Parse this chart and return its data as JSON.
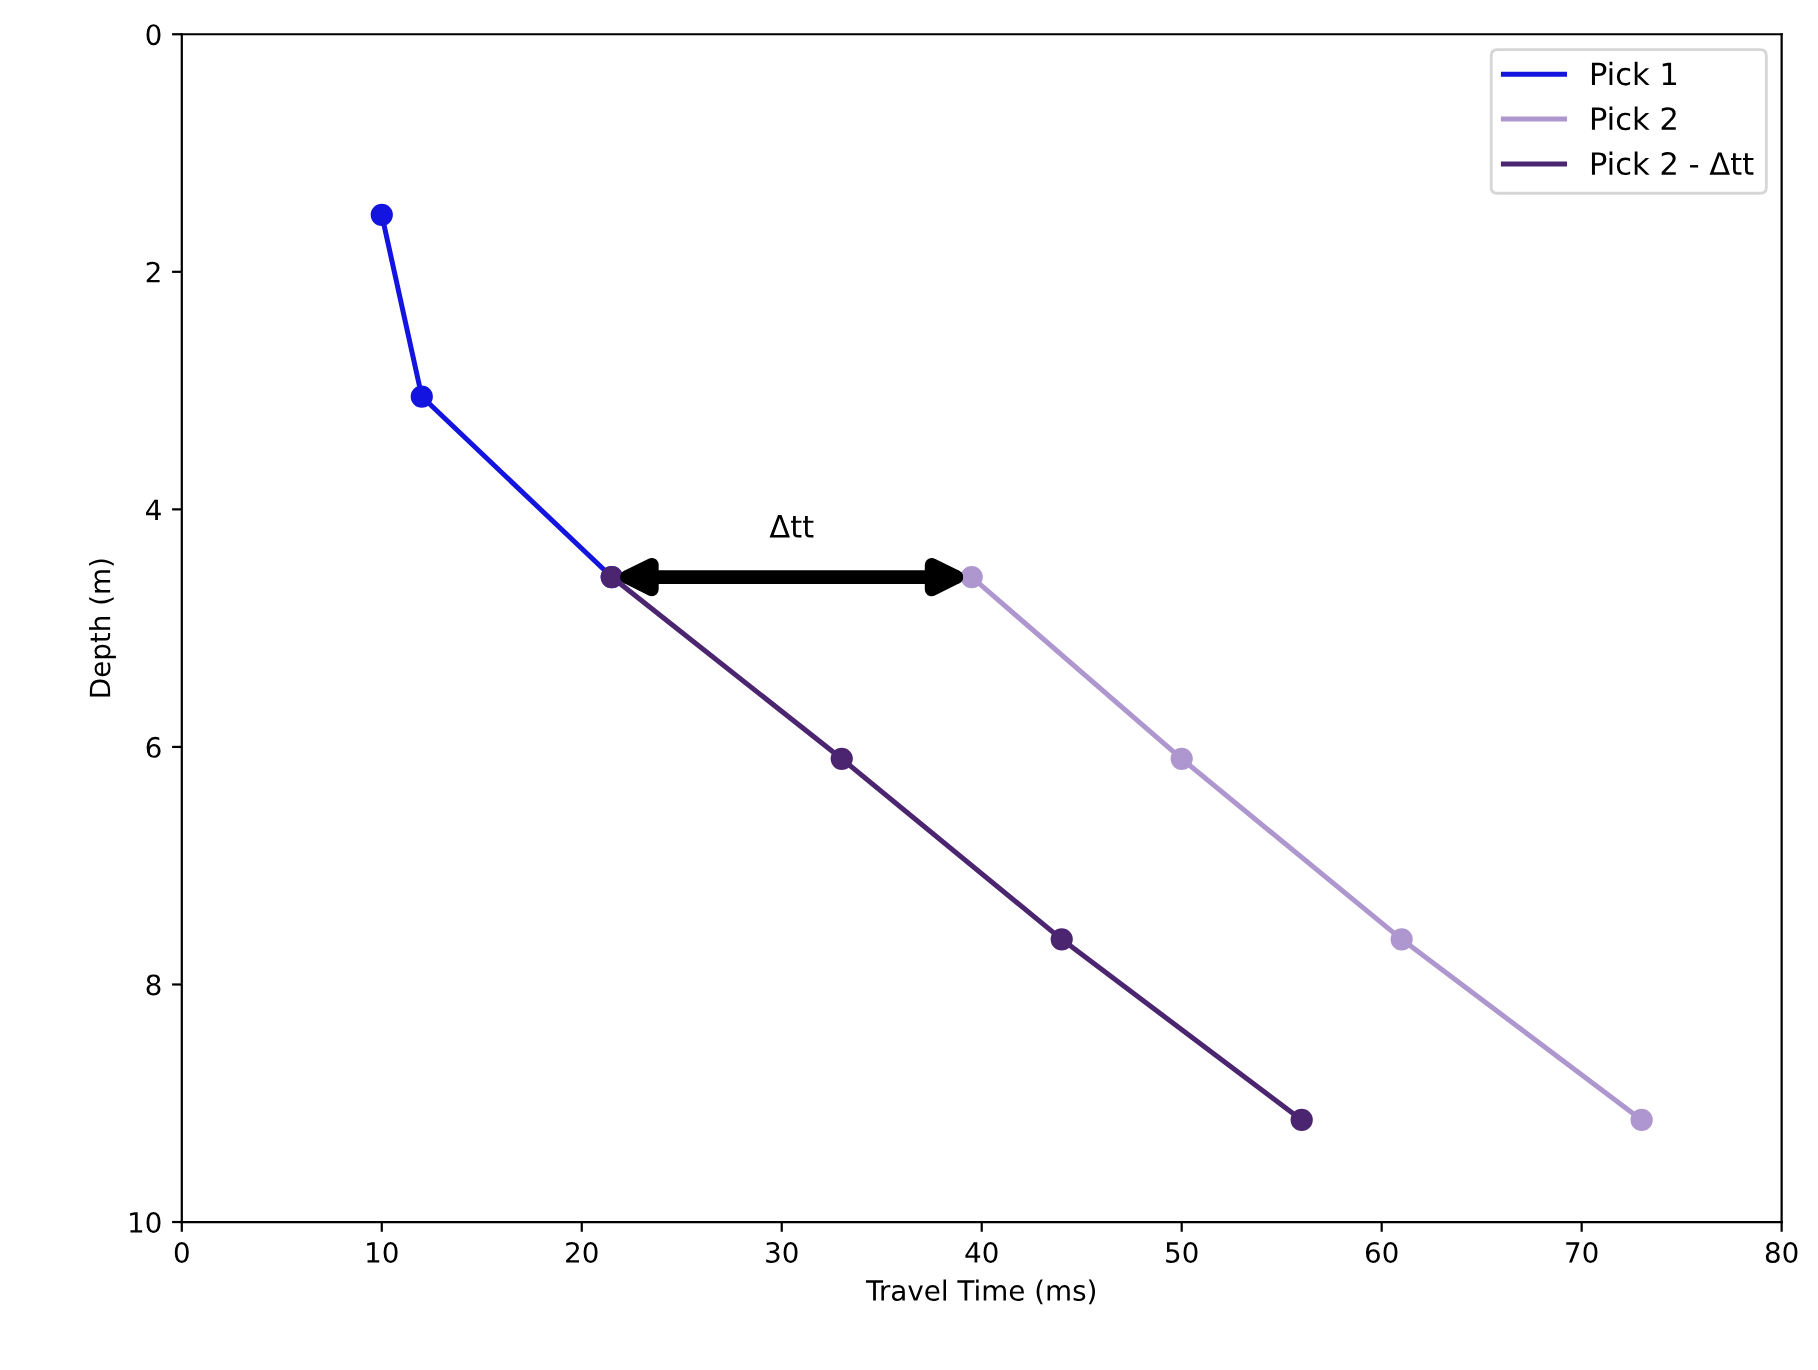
{
  "chart_data": {
    "type": "line",
    "xlabel": "Travel Time (ms)",
    "ylabel": "Depth (m)",
    "xlim": [
      0,
      80
    ],
    "xticks": [
      0,
      10,
      20,
      30,
      40,
      50,
      60,
      70,
      80
    ],
    "ylim": [
      10,
      0
    ],
    "yticks": [
      0,
      2,
      4,
      6,
      8,
      10
    ],
    "series": [
      {
        "name": "Pick 1",
        "color": "#1414e0",
        "x": [
          10,
          12,
          21.5
        ],
        "values": [
          1.52,
          3.05,
          4.57
        ]
      },
      {
        "name": "Pick 2",
        "color": "#ae96cf",
        "x": [
          39.5,
          50,
          61,
          73
        ],
        "values": [
          4.57,
          6.1,
          7.62,
          9.14
        ]
      },
      {
        "name": "Pick 2 - Δtt",
        "color": "#4b2570",
        "x": [
          21.5,
          33,
          44,
          56
        ],
        "values": [
          4.57,
          6.1,
          7.62,
          9.14
        ]
      }
    ],
    "annotations": [
      "Δtt"
    ],
    "marker": "circle",
    "line_style": "solid",
    "legend": "top right",
    "grid": false
  }
}
